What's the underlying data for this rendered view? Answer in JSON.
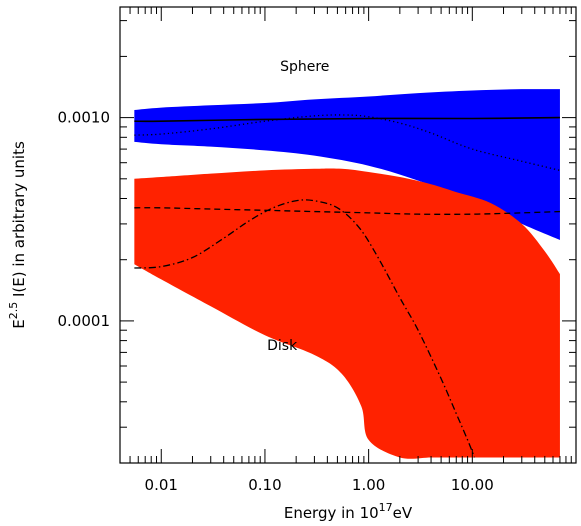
{
  "chart_data": {
    "type": "area",
    "xlabel_main": "Energy in 10",
    "xlabel_exp": "17",
    "xlabel_unit": "eV",
    "ylabel_main": "E",
    "ylabel_exp": "2.5",
    "ylabel_rest": " I(E) in arbitrary units",
    "x_scale": "log",
    "y_scale": "log",
    "xlim": [
      0.004,
      100
    ],
    "ylim": [
      2e-05,
      0.0035
    ],
    "x_ticks": [
      {
        "value": 0.01,
        "label": "0.01"
      },
      {
        "value": 0.1,
        "label": "0.10"
      },
      {
        "value": 1,
        "label": "1.00"
      },
      {
        "value": 10,
        "label": "10.00"
      }
    ],
    "y_ticks": [
      {
        "value": 0.0001,
        "label": "0.0001"
      },
      {
        "value": 0.001,
        "label": "0.0010"
      }
    ],
    "annotations": [
      {
        "text": "Sphere",
        "x": 0.14,
        "y": 0.0017
      },
      {
        "text": "Disk",
        "x": 0.105,
        "y": 7.2e-05
      }
    ],
    "bands": [
      {
        "color": "#0000ff",
        "x": [
          0.0055,
          0.01,
          0.03,
          0.1,
          0.3,
          1,
          3,
          10,
          30,
          70
        ],
        "upper": [
          0.00109,
          0.00112,
          0.00115,
          0.00118,
          0.00123,
          0.00127,
          0.00132,
          0.00136,
          0.00138,
          0.00138
        ],
        "lower": [
          0.00076,
          0.00074,
          0.00072,
          0.00069,
          0.00065,
          0.00058,
          0.00049,
          0.00039,
          0.0003,
          0.00025
        ]
      },
      {
        "color": "#ff2200",
        "x": [
          0.0055,
          0.01,
          0.03,
          0.1,
          0.3,
          0.55,
          1,
          2,
          4,
          7,
          15,
          30,
          50,
          70
        ],
        "upper": [
          0.0005,
          0.00051,
          0.00053,
          0.00055,
          0.00056,
          0.00056,
          0.00054,
          0.00051,
          0.00047,
          0.00043,
          0.00038,
          0.0003,
          0.00022,
          0.00017
        ],
        "lower": [
          0.00019,
          0.00016,
          0.000118,
          8.5e-05,
          6.8e-05,
          5.5e-05,
          3.8e-05,
          2.6e-05,
          2.13e-05,
          2.13e-05,
          2.13e-05,
          2.13e-05,
          2.13e-05,
          2.13e-05
        ],
        "lower_x": [
          0.0055,
          0.01,
          0.03,
          0.1,
          0.3,
          0.55,
          0.85,
          1.0,
          2,
          4,
          7,
          15,
          30,
          70
        ]
      }
    ],
    "series": [
      {
        "style": "solid",
        "x": [
          0.0055,
          0.01,
          0.1,
          1,
          10,
          70
        ],
        "y": [
          0.00096,
          0.00096,
          0.00098,
          0.00099,
          0.00099,
          0.001
        ]
      },
      {
        "style": "dotted",
        "x": [
          0.0055,
          0.01,
          0.03,
          0.1,
          0.3,
          0.6,
          1,
          2,
          4,
          10,
          30,
          70
        ],
        "y": [
          0.00082,
          0.00083,
          0.00088,
          0.00096,
          0.00102,
          0.00103,
          0.00101,
          0.00094,
          0.00084,
          0.0007,
          0.00061,
          0.00055
        ]
      },
      {
        "style": "dashed",
        "x": [
          0.0055,
          0.01,
          0.03,
          0.1,
          0.3,
          1,
          3,
          10,
          30,
          70
        ],
        "y": [
          0.00036,
          0.00036,
          0.000355,
          0.00035,
          0.000345,
          0.00034,
          0.000335,
          0.000335,
          0.00034,
          0.000345
        ]
      },
      {
        "style": "dashdot",
        "x": [
          0.0055,
          0.01,
          0.02,
          0.04,
          0.07,
          0.12,
          0.2,
          0.3,
          0.5,
          0.8,
          1.2,
          2,
          3,
          5,
          7,
          9,
          10.5
        ],
        "y": [
          0.000182,
          0.000185,
          0.000205,
          0.000255,
          0.00031,
          0.00036,
          0.00039,
          0.00039,
          0.00036,
          0.00029,
          0.00021,
          0.00013,
          9e-05,
          5.2e-05,
          3.5e-05,
          2.6e-05,
          2.13e-05
        ]
      }
    ]
  }
}
